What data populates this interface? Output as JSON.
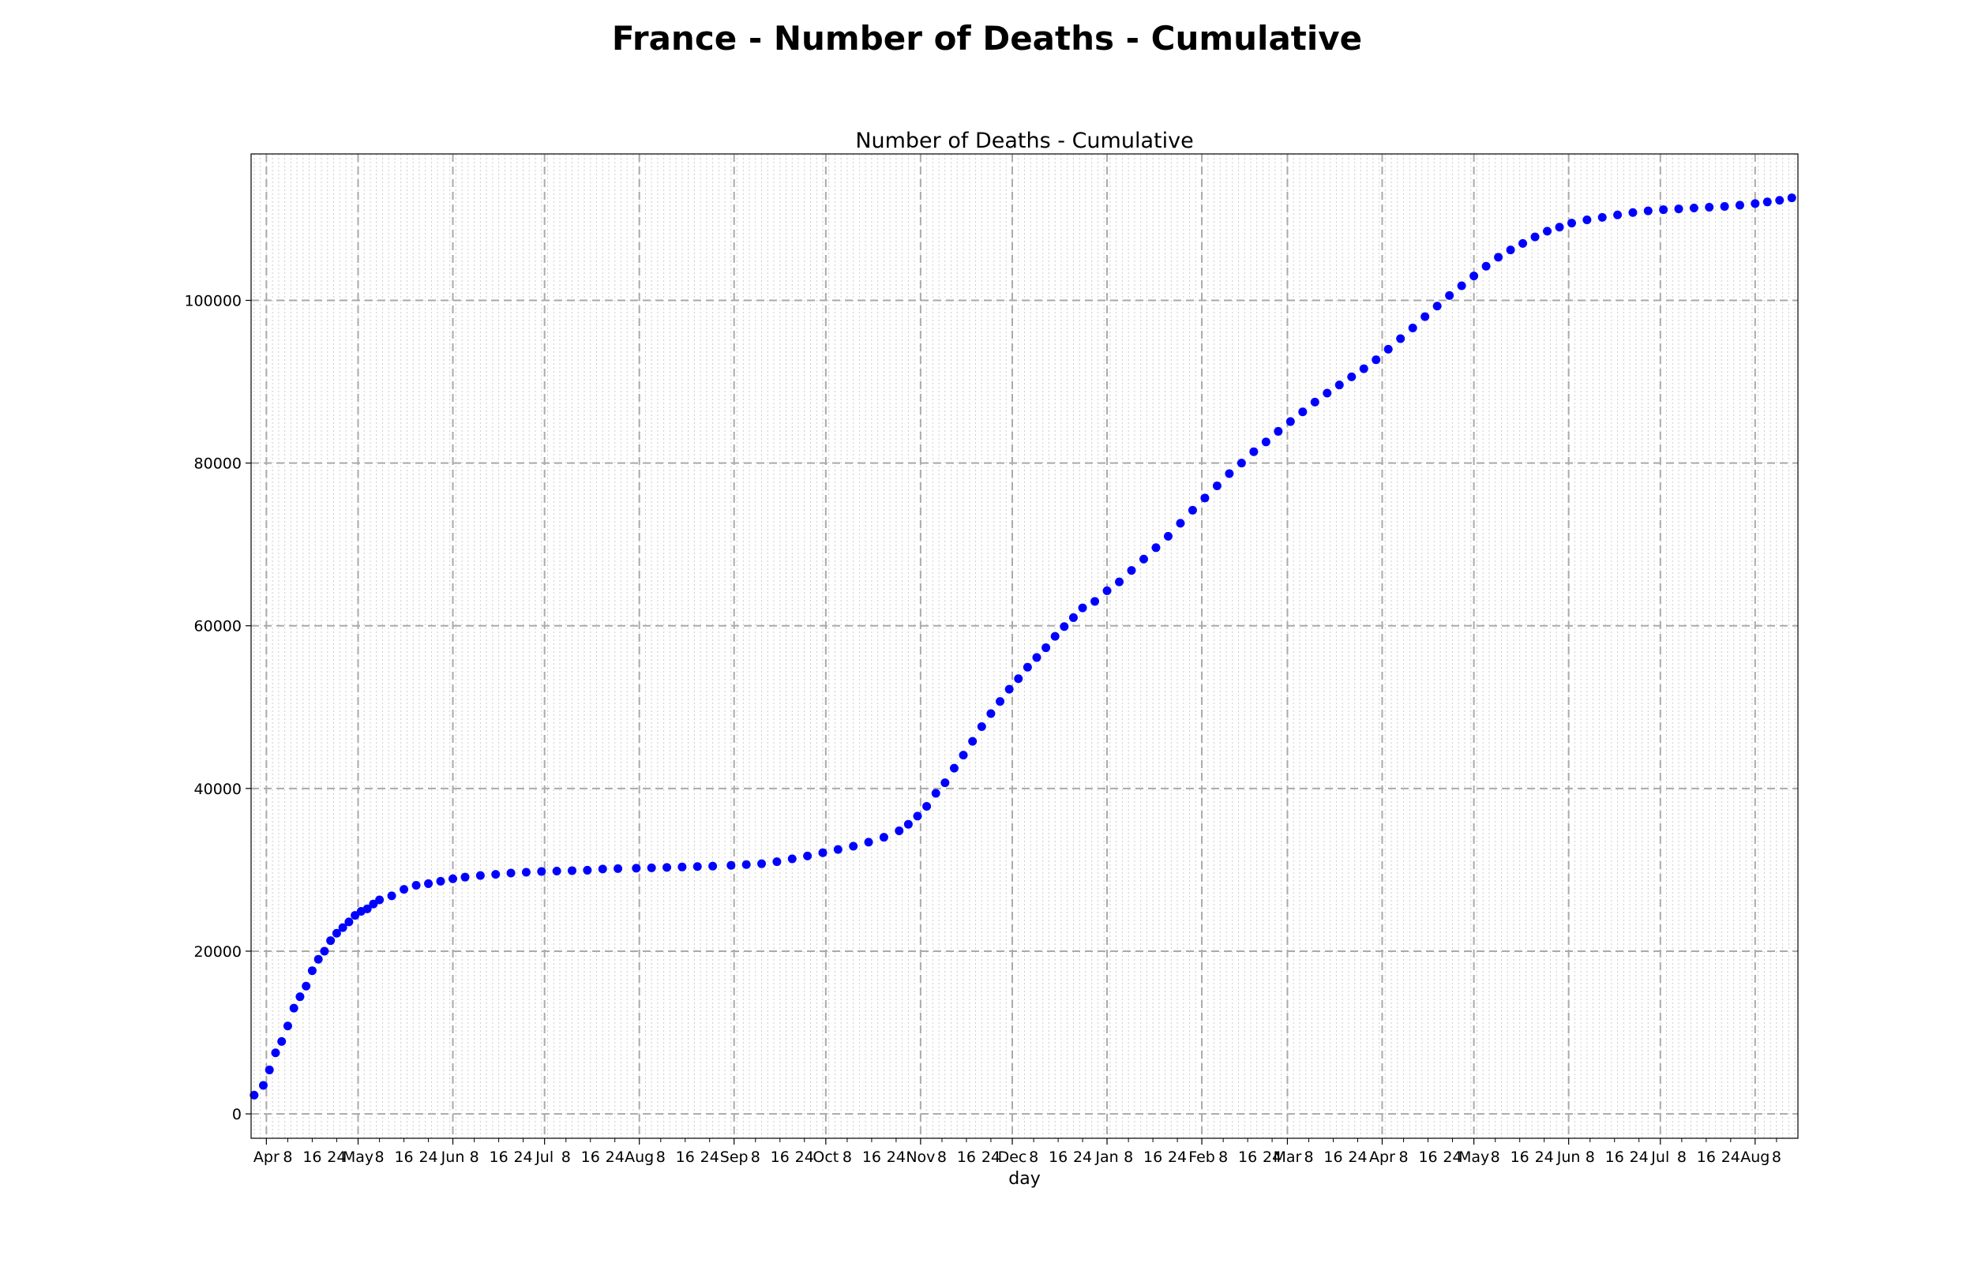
{
  "figure_title": "France - Number of Deaths - Cumulative",
  "chart_data": {
    "type": "scatter",
    "title": "Number of Deaths - Cumulative",
    "xlabel": "day",
    "ylabel": "",
    "x_type": "date",
    "xlim": [
      "2020-03-27",
      "2021-08-15"
    ],
    "ylim": [
      -3000,
      118000
    ],
    "y_ticks": [
      0,
      20000,
      40000,
      60000,
      80000,
      100000
    ],
    "x_major_ticks": [
      {
        "date": "2020-04-01",
        "label": "Apr"
      },
      {
        "date": "2020-05-01",
        "label": "May"
      },
      {
        "date": "2020-06-01",
        "label": "Jun"
      },
      {
        "date": "2020-07-01",
        "label": "Jul"
      },
      {
        "date": "2020-08-01",
        "label": "Aug"
      },
      {
        "date": "2020-09-01",
        "label": "Sep"
      },
      {
        "date": "2020-10-01",
        "label": "Oct"
      },
      {
        "date": "2020-11-01",
        "label": "Nov"
      },
      {
        "date": "2020-12-01",
        "label": "Dec"
      },
      {
        "date": "2021-01-01",
        "label": "Jan"
      },
      {
        "date": "2021-02-01",
        "label": "Feb"
      },
      {
        "date": "2021-03-01",
        "label": "Mar"
      },
      {
        "date": "2021-04-01",
        "label": "Apr"
      },
      {
        "date": "2021-05-01",
        "label": "May"
      },
      {
        "date": "2021-06-01",
        "label": "Jun"
      },
      {
        "date": "2021-07-01",
        "label": "Jul"
      },
      {
        "date": "2021-08-01",
        "label": "Aug"
      }
    ],
    "x_minor_tick_days": [
      "8",
      "16",
      "24"
    ],
    "grid": true,
    "marker_color": "#0000ff",
    "series": [
      {
        "name": "",
        "points": [
          [
            "2020-03-28",
            2300
          ],
          [
            "2020-03-31",
            3500
          ],
          [
            "2020-04-02",
            5400
          ],
          [
            "2020-04-04",
            7500
          ],
          [
            "2020-04-06",
            8900
          ],
          [
            "2020-04-08",
            10800
          ],
          [
            "2020-04-10",
            13000
          ],
          [
            "2020-04-12",
            14400
          ],
          [
            "2020-04-14",
            15700
          ],
          [
            "2020-04-16",
            17600
          ],
          [
            "2020-04-18",
            19000
          ],
          [
            "2020-04-20",
            20000
          ],
          [
            "2020-04-22",
            21300
          ],
          [
            "2020-04-24",
            22200
          ],
          [
            "2020-04-26",
            22900
          ],
          [
            "2020-04-28",
            23600
          ],
          [
            "2020-04-30",
            24400
          ],
          [
            "2020-05-02",
            24900
          ],
          [
            "2020-05-04",
            25200
          ],
          [
            "2020-05-06",
            25800
          ],
          [
            "2020-05-08",
            26300
          ],
          [
            "2020-05-12",
            26800
          ],
          [
            "2020-05-16",
            27600
          ],
          [
            "2020-05-20",
            28100
          ],
          [
            "2020-05-24",
            28300
          ],
          [
            "2020-05-28",
            28600
          ],
          [
            "2020-06-01",
            28900
          ],
          [
            "2020-06-05",
            29100
          ],
          [
            "2020-06-10",
            29300
          ],
          [
            "2020-06-15",
            29450
          ],
          [
            "2020-06-20",
            29600
          ],
          [
            "2020-06-25",
            29700
          ],
          [
            "2020-06-30",
            29800
          ],
          [
            "2020-07-05",
            29850
          ],
          [
            "2020-07-10",
            29900
          ],
          [
            "2020-07-15",
            29950
          ],
          [
            "2020-07-20",
            30100
          ],
          [
            "2020-07-25",
            30150
          ],
          [
            "2020-07-31",
            30200
          ],
          [
            "2020-08-05",
            30250
          ],
          [
            "2020-08-10",
            30300
          ],
          [
            "2020-08-15",
            30350
          ],
          [
            "2020-08-20",
            30400
          ],
          [
            "2020-08-25",
            30450
          ],
          [
            "2020-08-31",
            30550
          ],
          [
            "2020-09-05",
            30650
          ],
          [
            "2020-09-10",
            30750
          ],
          [
            "2020-09-15",
            31000
          ],
          [
            "2020-09-20",
            31350
          ],
          [
            "2020-09-25",
            31700
          ],
          [
            "2020-09-30",
            32100
          ],
          [
            "2020-10-05",
            32500
          ],
          [
            "2020-10-10",
            32900
          ],
          [
            "2020-10-15",
            33400
          ],
          [
            "2020-10-20",
            34000
          ],
          [
            "2020-10-25",
            34800
          ],
          [
            "2020-10-28",
            35600
          ],
          [
            "2020-10-31",
            36600
          ],
          [
            "2020-11-03",
            37800
          ],
          [
            "2020-11-06",
            39400
          ],
          [
            "2020-11-09",
            40700
          ],
          [
            "2020-11-12",
            42500
          ],
          [
            "2020-11-15",
            44100
          ],
          [
            "2020-11-18",
            45800
          ],
          [
            "2020-11-21",
            47600
          ],
          [
            "2020-11-24",
            49200
          ],
          [
            "2020-11-27",
            50700
          ],
          [
            "2020-11-30",
            52200
          ],
          [
            "2020-12-03",
            53500
          ],
          [
            "2020-12-06",
            54900
          ],
          [
            "2020-12-09",
            56100
          ],
          [
            "2020-12-12",
            57300
          ],
          [
            "2020-12-15",
            58700
          ],
          [
            "2020-12-18",
            59900
          ],
          [
            "2020-12-21",
            61000
          ],
          [
            "2020-12-24",
            62200
          ],
          [
            "2020-12-28",
            63000
          ],
          [
            "2021-01-01",
            64300
          ],
          [
            "2021-01-05",
            65400
          ],
          [
            "2021-01-09",
            66800
          ],
          [
            "2021-01-13",
            68200
          ],
          [
            "2021-01-17",
            69600
          ],
          [
            "2021-01-21",
            71000
          ],
          [
            "2021-01-25",
            72600
          ],
          [
            "2021-01-29",
            74200
          ],
          [
            "2021-02-02",
            75700
          ],
          [
            "2021-02-06",
            77200
          ],
          [
            "2021-02-10",
            78700
          ],
          [
            "2021-02-14",
            80000
          ],
          [
            "2021-02-18",
            81400
          ],
          [
            "2021-02-22",
            82600
          ],
          [
            "2021-02-26",
            83900
          ],
          [
            "2021-03-02",
            85100
          ],
          [
            "2021-03-06",
            86300
          ],
          [
            "2021-03-10",
            87500
          ],
          [
            "2021-03-14",
            88600
          ],
          [
            "2021-03-18",
            89600
          ],
          [
            "2021-03-22",
            90600
          ],
          [
            "2021-03-26",
            91600
          ],
          [
            "2021-03-30",
            92700
          ],
          [
            "2021-04-03",
            94000
          ],
          [
            "2021-04-07",
            95300
          ],
          [
            "2021-04-11",
            96600
          ],
          [
            "2021-04-15",
            98000
          ],
          [
            "2021-04-19",
            99300
          ],
          [
            "2021-04-23",
            100600
          ],
          [
            "2021-04-27",
            101800
          ],
          [
            "2021-05-01",
            103000
          ],
          [
            "2021-05-05",
            104200
          ],
          [
            "2021-05-09",
            105300
          ],
          [
            "2021-05-13",
            106200
          ],
          [
            "2021-05-17",
            107000
          ],
          [
            "2021-05-21",
            107800
          ],
          [
            "2021-05-25",
            108500
          ],
          [
            "2021-05-29",
            109000
          ],
          [
            "2021-06-02",
            109500
          ],
          [
            "2021-06-07",
            109900
          ],
          [
            "2021-06-12",
            110200
          ],
          [
            "2021-06-17",
            110500
          ],
          [
            "2021-06-22",
            110800
          ],
          [
            "2021-06-27",
            111000
          ],
          [
            "2021-07-02",
            111150
          ],
          [
            "2021-07-07",
            111250
          ],
          [
            "2021-07-12",
            111350
          ],
          [
            "2021-07-17",
            111450
          ],
          [
            "2021-07-22",
            111550
          ],
          [
            "2021-07-27",
            111700
          ],
          [
            "2021-08-01",
            111900
          ],
          [
            "2021-08-05",
            112100
          ],
          [
            "2021-08-09",
            112300
          ],
          [
            "2021-08-13",
            112600
          ]
        ]
      }
    ]
  }
}
